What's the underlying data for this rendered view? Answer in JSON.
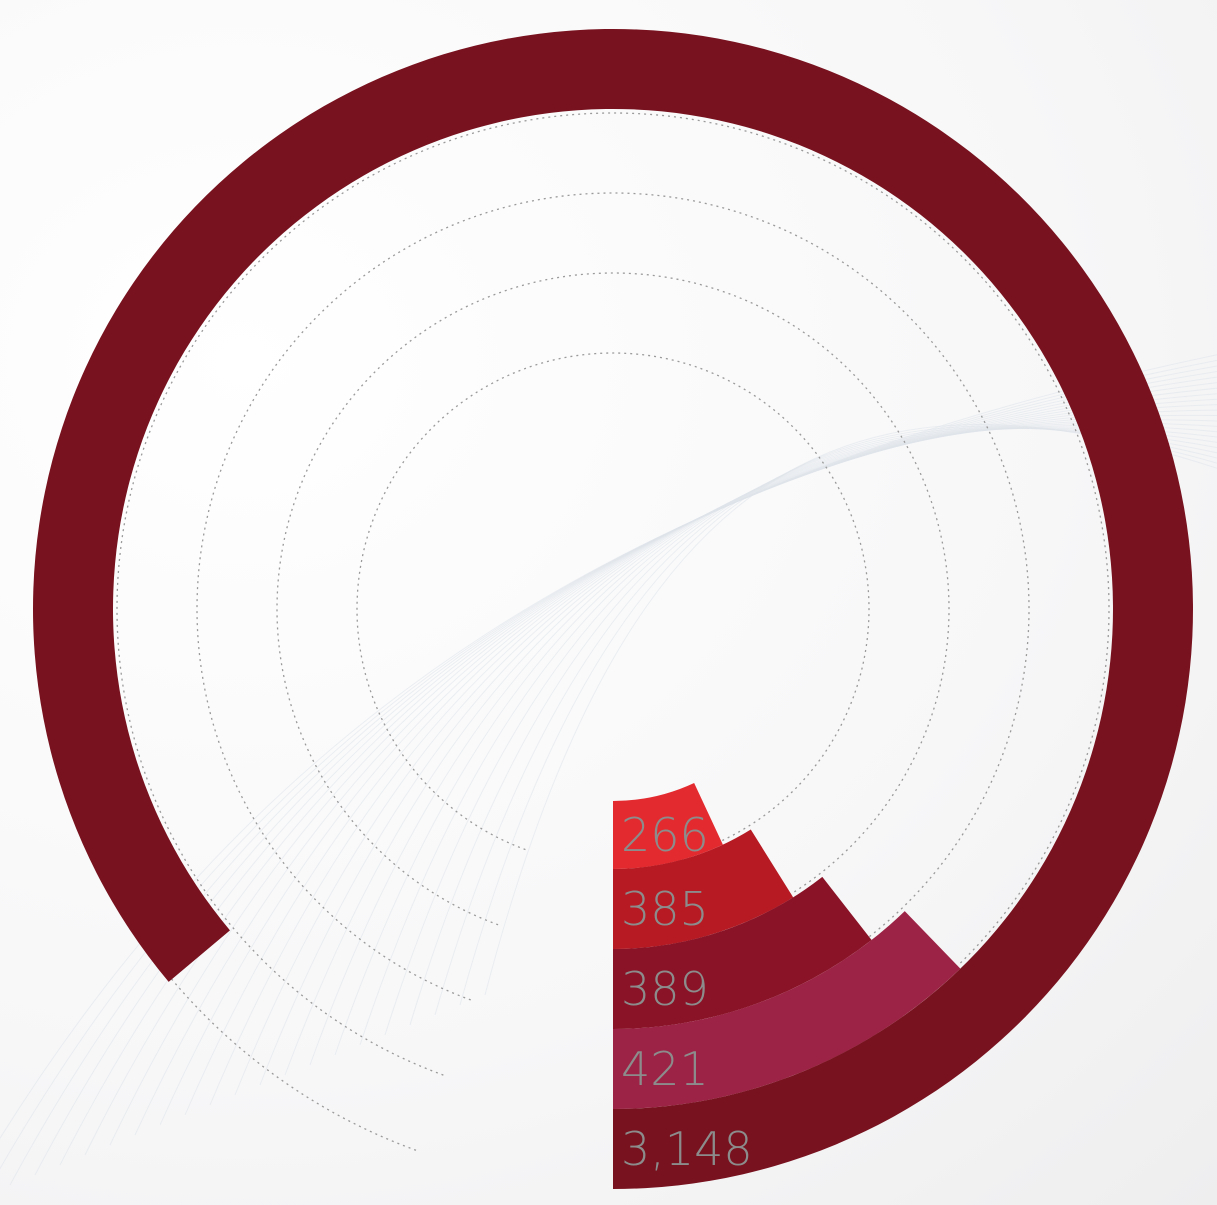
{
  "chart_data": {
    "type": "radial-bar",
    "title": "",
    "series": [
      {
        "label": "266",
        "value": 266,
        "color": "#e32b2f"
      },
      {
        "label": "385",
        "value": 385,
        "color": "#b71a22"
      },
      {
        "label": "389",
        "value": 389,
        "color": "#8a1327"
      },
      {
        "label": "421",
        "value": 421,
        "color": "#9c2345"
      },
      {
        "label": "3,148",
        "value": 3148,
        "color": "#78121e"
      }
    ],
    "track_style": "dotted",
    "background_color": "#f4f4f5"
  }
}
